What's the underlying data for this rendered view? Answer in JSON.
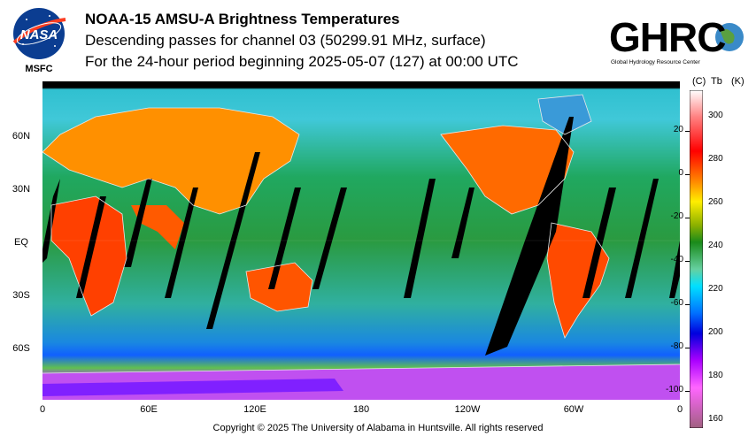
{
  "header": {
    "title": "NOAA-15 AMSU-A Brightness Temperatures",
    "subtitle": "Descending passes for channel 03 (50299.91 MHz, surface)",
    "period": "For the 24-hour period beginning 2025-05-07 (127) at 00:00 UTC"
  },
  "nasa_logo": {
    "text": "NASA",
    "caption": "MSFC"
  },
  "ghrc_logo": {
    "text": "GHRC",
    "caption": "Global Hydrology Resource Center"
  },
  "map": {
    "lat_labels": [
      "60N",
      "30N",
      "EQ",
      "30S",
      "60S"
    ],
    "lon_labels": [
      "0",
      "60E",
      "120E",
      "180",
      "120W",
      "60W",
      "0"
    ]
  },
  "colorbar": {
    "unit_c": "(C)",
    "unit_tb": "Tb",
    "unit_k": "(K)",
    "celsius_ticks": [
      "20",
      "0",
      "-20",
      "-40",
      "-60",
      "-80",
      "-100"
    ],
    "kelvin_ticks": [
      "300",
      "280",
      "260",
      "240",
      "220",
      "200",
      "180",
      "160"
    ],
    "colors": [
      "#ffffff",
      "#ff8080",
      "#ff0000",
      "#ff8800",
      "#ffee00",
      "#8bb000",
      "#1a8a1a",
      "#66d0a0",
      "#00e0ff",
      "#0070ff",
      "#0000dd",
      "#aa00ff",
      "#ff66ff",
      "#a06080"
    ]
  },
  "footer": {
    "copyright": "Copyright © 2025 The University of Alabama in Huntsville.  All rights reserved"
  }
}
